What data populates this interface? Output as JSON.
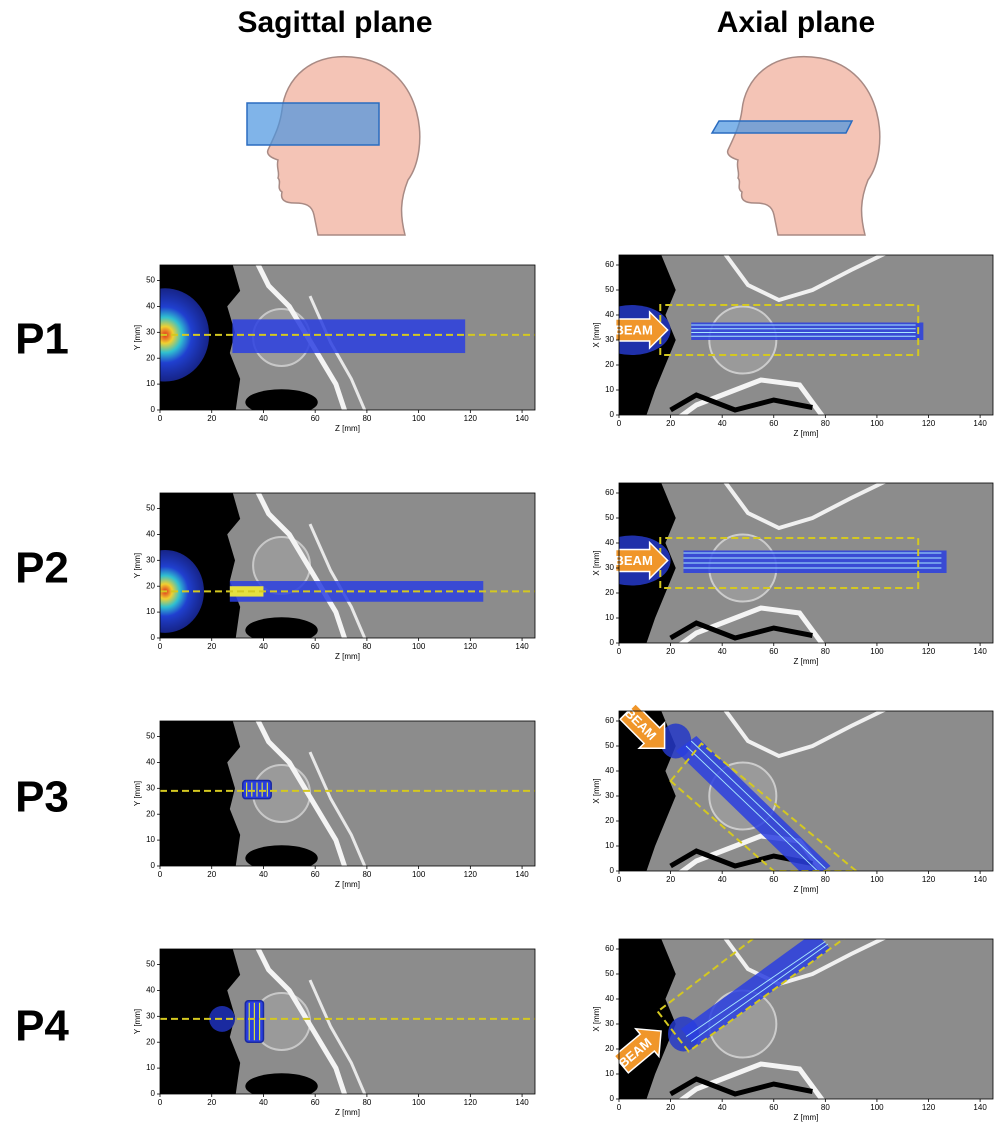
{
  "columns": [
    {
      "title": "Sagittal plane",
      "xlabel": "Z [mm]",
      "ylabel": "Y [mm]",
      "xlim": [
        0,
        145
      ],
      "ylim": [
        0,
        56
      ],
      "xticks": [
        0,
        20,
        40,
        60,
        80,
        100,
        120,
        140
      ],
      "yticks": [
        0,
        10,
        20,
        30,
        40,
        50
      ]
    },
    {
      "title": "Axial plane",
      "xlabel": "Z [mm]",
      "ylabel": "X [mm]",
      "xlim": [
        0,
        145
      ],
      "ylim": [
        0,
        64
      ],
      "xticks": [
        0,
        20,
        40,
        60,
        80,
        100,
        120,
        140
      ],
      "yticks": [
        0,
        10,
        20,
        30,
        40,
        50,
        60
      ]
    }
  ],
  "rows": [
    {
      "label": "P1",
      "beam": "BEAM"
    },
    {
      "label": "P2",
      "beam": "BEAM"
    },
    {
      "label": "P3",
      "beam": "BEAM"
    },
    {
      "label": "P4",
      "beam": "BEAM"
    }
  ]
}
